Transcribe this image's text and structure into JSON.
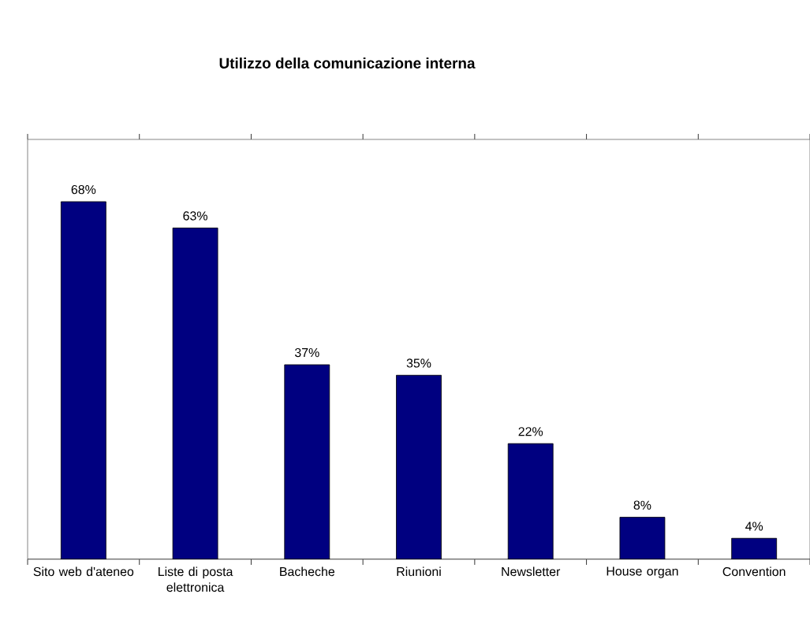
{
  "chart_data": {
    "type": "bar",
    "title": "Utilizzo della comunicazione interna",
    "categories": [
      "Sito web d'ateneo",
      "Liste di posta elettronica",
      "Bacheche",
      "Riunioni",
      "Newsletter",
      "House organ",
      "Convention"
    ],
    "values": [
      68,
      63,
      37,
      35,
      22,
      8,
      4
    ],
    "value_labels": [
      "68%",
      "63%",
      "37%",
      "35%",
      "22%",
      "8%",
      "4%"
    ],
    "color": "#000080"
  }
}
